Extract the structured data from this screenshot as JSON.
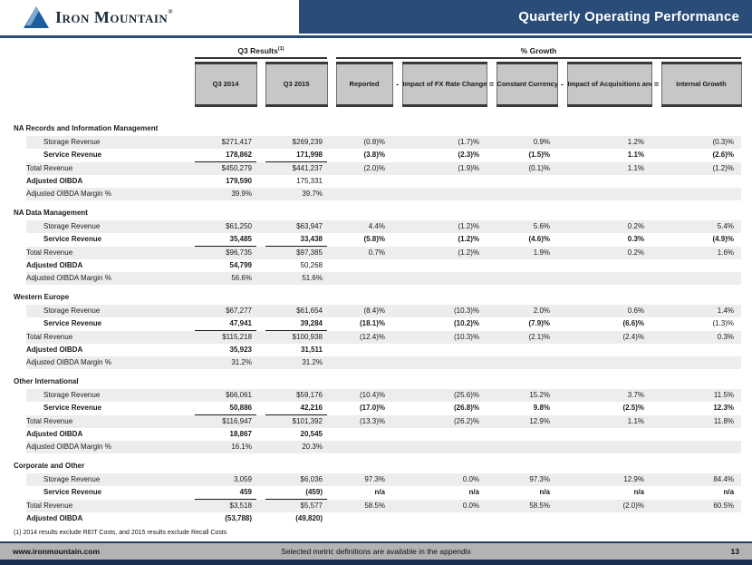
{
  "header": {
    "logo_text": "Iron Mountain",
    "logo_reg": "®",
    "title": "Quarterly Operating Performance"
  },
  "table": {
    "group_headers": [
      {
        "label": "Q3 Results",
        "sup": "(1)"
      },
      {
        "label": "% Growth"
      }
    ],
    "columns": [
      "Q3 2014",
      "Q3 2015",
      "Reported",
      "Impact of FX Rate Changes and Adjustments",
      "Constant Currency",
      "Impact of Acquisitions and Dispositions",
      "Internal Growth"
    ],
    "operators": [
      "-",
      "=",
      "-",
      "="
    ],
    "sections": [
      {
        "title": "NA Records and Information Management",
        "rows": [
          {
            "label": "Storage Revenue",
            "kind": "storage",
            "values": [
              "$271,417",
              "$269,239",
              "(0.8)%",
              "(1.7)%",
              "0.9%",
              "1.2%",
              "(0.3)%"
            ]
          },
          {
            "label": "Service Revenue",
            "kind": "service",
            "values": [
              "178,862",
              "171,998",
              "(3.8)%",
              "(2.3)%",
              "(1.5)%",
              "1.1%",
              "(2.6)%"
            ]
          },
          {
            "label": "Total Revenue",
            "kind": "total",
            "values": [
              "$450,279",
              "$441,237",
              "(2.0)%",
              "(1.9)%",
              "(0.1)%",
              "1.1%",
              "(1.2)%"
            ]
          },
          {
            "label": "Adjusted OIBDA",
            "kind": "oibda",
            "values": [
              "179,590",
              "175,331"
            ],
            "bold_cols": [
              0
            ]
          },
          {
            "label": "Adjusted OIBDA Margin %",
            "kind": "margin",
            "values": [
              "39.9%",
              "39.7%"
            ]
          }
        ]
      },
      {
        "title": "NA Data Management",
        "rows": [
          {
            "label": "Storage Revenue",
            "kind": "storage",
            "values": [
              "$61,250",
              "$63,947",
              "4.4%",
              "(1.2)%",
              "5.6%",
              "0.2%",
              "5.4%"
            ]
          },
          {
            "label": "Service Revenue",
            "kind": "service",
            "values": [
              "35,485",
              "33,438",
              "(5.8)%",
              "(1.2)%",
              "(4.6)%",
              "0.3%",
              "(4.9)%"
            ]
          },
          {
            "label": "Total Revenue",
            "kind": "total",
            "values": [
              "$96,735",
              "$97,385",
              "0.7%",
              "(1.2)%",
              "1.9%",
              "0.2%",
              "1.6%"
            ]
          },
          {
            "label": "Adjusted OIBDA",
            "kind": "oibda",
            "values": [
              "54,799",
              "50,268"
            ],
            "bold_cols": [
              0
            ]
          },
          {
            "label": "Adjusted OIBDA Margin %",
            "kind": "margin",
            "values": [
              "56.6%",
              "51.6%"
            ]
          }
        ]
      },
      {
        "title": "Western Europe",
        "rows": [
          {
            "label": "Storage Revenue",
            "kind": "storage",
            "values": [
              "$67,277",
              "$61,654",
              "(8.4)%",
              "(10.3)%",
              "2.0%",
              "0.6%",
              "1.4%"
            ]
          },
          {
            "label": "Service Revenue",
            "kind": "service",
            "values": [
              "47,941",
              "39,284",
              "(18.1)%",
              "(10.2)%",
              "(7.9)%",
              "(6.6)%",
              "(1.3)%"
            ],
            "plain_cols": [
              6
            ]
          },
          {
            "label": "Total Revenue",
            "kind": "total",
            "values": [
              "$115,218",
              "$100,938",
              "(12.4)%",
              "(10.3)%",
              "(2.1)%",
              "(2.4)%",
              "0.3%"
            ]
          },
          {
            "label": "Adjusted OIBDA",
            "kind": "oibda",
            "values": [
              "35,923",
              "31,511"
            ],
            "bold_cols": [
              0,
              1
            ]
          },
          {
            "label": "Adjusted OIBDA Margin %",
            "kind": "margin",
            "values": [
              "31.2%",
              "31.2%"
            ]
          }
        ]
      },
      {
        "title": "Other International",
        "rows": [
          {
            "label": "Storage Revenue",
            "kind": "storage",
            "values": [
              "$66,061",
              "$59,176",
              "(10.4)%",
              "(25.6)%",
              "15.2%",
              "3.7%",
              "11.5%"
            ]
          },
          {
            "label": "Service Revenue",
            "kind": "service",
            "values": [
              "50,886",
              "42,216",
              "(17.0)%",
              "(26.8)%",
              "9.8%",
              "(2.5)%",
              "12.3%"
            ]
          },
          {
            "label": "Total Revenue",
            "kind": "total",
            "values": [
              "$116,947",
              "$101,392",
              "(13.3)%",
              "(26.2)%",
              "12.9%",
              "1.1%",
              "11.8%"
            ]
          },
          {
            "label": "Adjusted OIBDA",
            "kind": "oibda",
            "values": [
              "18,867",
              "20,545"
            ],
            "bold_cols": [
              0,
              1
            ]
          },
          {
            "label": "Adjusted OIBDA Margin %",
            "kind": "margin",
            "values": [
              "16.1%",
              "20.3%"
            ]
          }
        ]
      },
      {
        "title": "Corporate and Other",
        "rows": [
          {
            "label": "Storage Revenue",
            "kind": "storage",
            "values": [
              "3,059",
              "$6,036",
              "97.3%",
              "0.0%",
              "97.3%",
              "12.9%",
              "84.4%"
            ]
          },
          {
            "label": "Service Revenue",
            "kind": "service",
            "values": [
              "459",
              "(459)",
              "n/a",
              "n/a",
              "n/a",
              "n/a",
              "n/a"
            ]
          },
          {
            "label": "Total Revenue",
            "kind": "total",
            "values": [
              "$3,518",
              "$5,577",
              "58.5%",
              "0.0%",
              "58.5%",
              "(2.0)%",
              "60.5%"
            ]
          },
          {
            "label": "Adjusted OIBDA",
            "kind": "oibda",
            "values": [
              "(53,788)",
              "(49,820)"
            ],
            "bold_cols": [
              0,
              1
            ]
          }
        ]
      }
    ]
  },
  "footnote": "(1) 2014 results exclude REIT Costs, and 2015 results exclude Recall Costs",
  "footer": {
    "url": "www.ironmountain.com",
    "note": "Selected metric definitions are available in the appendix",
    "page": "13"
  },
  "colors": {
    "brand_navy": "#2a4c78",
    "footer_navy": "#1a2e52",
    "footer_gray": "#b3b3b3",
    "box_gray": "#c7c7c7",
    "stripe_gray": "#ededed"
  }
}
